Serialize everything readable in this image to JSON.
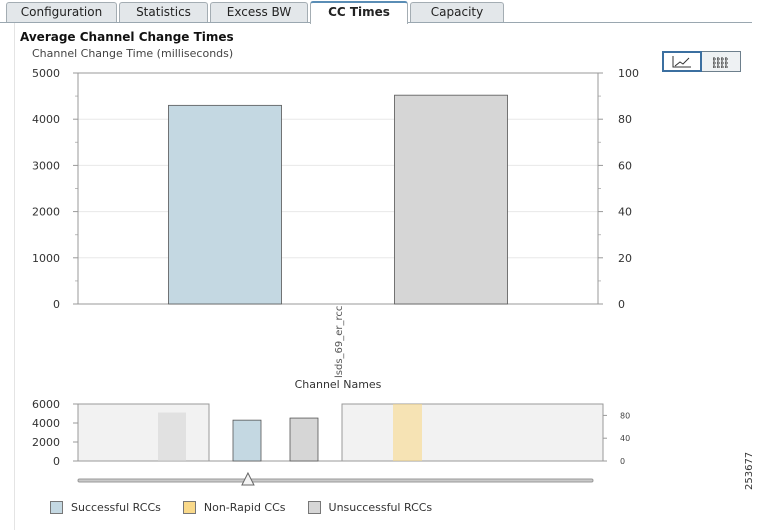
{
  "tabs": [
    {
      "label": "Configuration",
      "active": false
    },
    {
      "label": "Statistics",
      "active": false
    },
    {
      "label": "Excess BW",
      "active": false
    },
    {
      "label": "CC Times",
      "active": true
    },
    {
      "label": "Capacity",
      "active": false
    }
  ],
  "panel": {
    "title": "Average Channel Change Times"
  },
  "view_toggle": [
    {
      "icon": "line-chart-icon",
      "active": true
    },
    {
      "icon": "table-view-icon",
      "active": false
    }
  ],
  "colors": {
    "successful": "#c4d8e2",
    "non_rapid": "#f9d98a",
    "unsuccessful": "#d6d6d6",
    "accent": "#3b6fa0"
  },
  "chart_data": {
    "type": "bar",
    "title": "Channel Change Time (milliseconds)",
    "xlabel": "Channel Names",
    "categories": [
      "lsds_69_er_rcc"
    ],
    "series": [
      {
        "name": "Successful RCCs",
        "values": [
          4300
        ]
      },
      {
        "name": "Unsuccessful RCCs",
        "values": [
          4520
        ]
      }
    ],
    "ylim": [
      0,
      5000
    ],
    "y_ticks": [
      "0",
      "1000",
      "2000",
      "3000",
      "4000",
      "5000"
    ],
    "y2lim": [
      0,
      100
    ],
    "y2_ticks": [
      "0",
      "20",
      "40",
      "60",
      "80",
      "100"
    ],
    "grid": true,
    "legend_position": "bottom-left"
  },
  "navigator": {
    "ylim": [
      0,
      6000
    ],
    "y_ticks": [
      "0",
      "2000",
      "4000",
      "6000"
    ],
    "y2lim": [
      0,
      100
    ],
    "y2_ticks": [
      "0",
      "40",
      "80"
    ],
    "bars": [
      {
        "series": "Unsuccessful RCCs",
        "value": 5100,
        "faded": true
      },
      {
        "series": "Successful RCCs",
        "value": 4300,
        "faded": false
      },
      {
        "series": "Unsuccessful RCCs",
        "value": 4520,
        "faded": false
      },
      {
        "series": "Non-Rapid CCs",
        "value": 6000,
        "faded": true
      }
    ],
    "slider_position": 0.33
  },
  "legend": [
    {
      "label": "Successful RCCs",
      "color_key": "successful"
    },
    {
      "label": "Non-Rapid CCs",
      "color_key": "non_rapid"
    },
    {
      "label": "Unsuccessful RCCs",
      "color_key": "unsuccessful"
    }
  ],
  "figure_id": "253677"
}
